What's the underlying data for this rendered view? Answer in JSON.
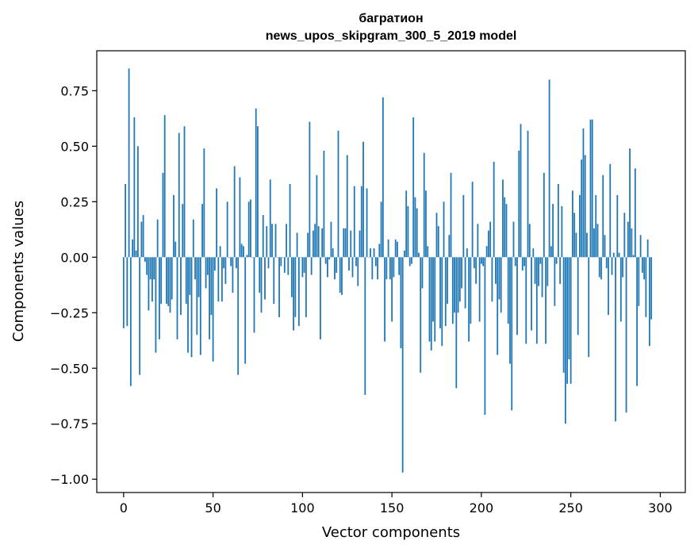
{
  "chart_data": {
    "type": "bar",
    "title": "багратион",
    "subtitle": "news_upos_skipgram_300_5_2019 model",
    "xlabel": "Vector components",
    "ylabel": "Components values",
    "xlim": [
      -15,
      314
    ],
    "ylim": [
      -1.06,
      0.93
    ],
    "grid": false,
    "color": "#1f77b4",
    "xticks": [
      {
        "value": 0,
        "label": "0"
      },
      {
        "value": 50,
        "label": "50"
      },
      {
        "value": 100,
        "label": "100"
      },
      {
        "value": 150,
        "label": "150"
      },
      {
        "value": 200,
        "label": "200"
      },
      {
        "value": 250,
        "label": "250"
      },
      {
        "value": 300,
        "label": "300"
      }
    ],
    "yticks": [
      {
        "value": 0.75,
        "label": "0.75"
      },
      {
        "value": 0.5,
        "label": "0.50"
      },
      {
        "value": 0.25,
        "label": "0.25"
      },
      {
        "value": 0.0,
        "label": "0.00"
      },
      {
        "value": -0.25,
        "label": "−0.25"
      },
      {
        "value": -0.5,
        "label": "−0.50"
      },
      {
        "value": -0.75,
        "label": "−0.75"
      },
      {
        "value": -1.0,
        "label": "−1.00"
      }
    ],
    "values": [
      -0.32,
      0.33,
      -0.31,
      0.85,
      -0.58,
      0.08,
      0.63,
      0.03,
      0.5,
      -0.53,
      0.16,
      0.19,
      -0.02,
      -0.08,
      -0.24,
      -0.1,
      -0.2,
      -0.1,
      -0.43,
      0.17,
      -0.37,
      -0.21,
      0.38,
      0.64,
      -0.21,
      -0.22,
      -0.25,
      -0.19,
      0.28,
      0.07,
      -0.37,
      0.56,
      -0.26,
      0.24,
      0.59,
      -0.21,
      -0.43,
      -0.17,
      -0.45,
      0.17,
      -0.1,
      -0.35,
      -0.18,
      -0.44,
      0.24,
      0.49,
      -0.14,
      -0.08,
      -0.37,
      -0.26,
      -0.47,
      -0.06,
      0.31,
      -0.2,
      0.05,
      -0.2,
      -0.05,
      -0.12,
      0.25,
      0.0,
      -0.04,
      -0.16,
      0.41,
      -0.05,
      -0.53,
      0.36,
      0.06,
      0.05,
      -0.48,
      0.01,
      0.25,
      0.26,
      0.0,
      -0.34,
      0.67,
      0.59,
      -0.16,
      -0.25,
      0.19,
      -0.19,
      0.14,
      -0.05,
      0.35,
      0.15,
      -0.21,
      0.15,
      0.0,
      -0.27,
      -0.04,
      0.0,
      -0.07,
      0.15,
      -0.08,
      0.33,
      -0.18,
      -0.33,
      -0.27,
      0.11,
      -0.31,
      0.0,
      -0.09,
      -0.07,
      -0.27,
      0.11,
      0.61,
      -0.08,
      0.12,
      0.15,
      0.37,
      0.14,
      -0.37,
      0.13,
      0.48,
      -0.03,
      -0.09,
      -0.01,
      0.16,
      0.04,
      -0.1,
      -0.07,
      0.57,
      -0.16,
      -0.17,
      0.13,
      0.13,
      0.46,
      -0.06,
      0.12,
      -0.09,
      0.32,
      -0.04,
      -0.13,
      0.12,
      0.32,
      0.52,
      -0.62,
      0.31,
      0.0,
      0.04,
      -0.1,
      0.04,
      -0.04,
      -0.1,
      0.06,
      0.25,
      0.72,
      -0.38,
      -0.1,
      0.08,
      -0.1,
      -0.29,
      -0.09,
      0.08,
      0.07,
      -0.08,
      -0.41,
      -0.97,
      0.03,
      0.3,
      0.23,
      -0.04,
      -0.03,
      0.63,
      0.27,
      0.22,
      0.02,
      -0.52,
      -0.14,
      0.47,
      0.3,
      0.05,
      -0.38,
      -0.42,
      -0.29,
      -0.38,
      0.2,
      0.14,
      -0.32,
      -0.4,
      0.25,
      -0.31,
      -0.21,
      0.1,
      0.38,
      -0.3,
      -0.25,
      -0.59,
      -0.25,
      -0.2,
      -0.14,
      0.28,
      -0.23,
      0.04,
      -0.38,
      -0.3,
      0.34,
      -0.05,
      -0.12,
      0.15,
      -0.29,
      -0.03,
      -0.04,
      -0.71,
      0.05,
      0.12,
      0.16,
      -0.2,
      0.43,
      -0.12,
      -0.44,
      -0.19,
      -0.25,
      0.35,
      0.27,
      0.24,
      -0.3,
      -0.48,
      -0.69,
      0.16,
      -0.04,
      -0.35,
      0.48,
      0.6,
      -0.06,
      -0.04,
      -0.39,
      0.57,
      0.15,
      -0.33,
      0.04,
      -0.12,
      -0.39,
      -0.13,
      -0.03,
      -0.18,
      0.38,
      -0.39,
      -0.13,
      0.8,
      0.05,
      0.24,
      -0.22,
      -0.03,
      0.33,
      -0.12,
      0.23,
      -0.52,
      -0.75,
      -0.57,
      -0.46,
      -0.57,
      0.3,
      0.2,
      0.11,
      -0.35,
      0.28,
      0.44,
      0.58,
      0.46,
      0.11,
      -0.45,
      0.62,
      0.62,
      0.13,
      0.28,
      0.15,
      -0.09,
      -0.1,
      0.37,
      0.1,
      -0.05,
      -0.26,
      0.42,
      -0.08,
      0.02,
      -0.74,
      0.28,
      0.02,
      -0.29,
      -0.09,
      0.2,
      -0.7,
      0.16,
      0.49,
      0.13,
      0.01,
      0.4,
      -0.58,
      -0.22,
      0.1,
      -0.07,
      -0.1,
      -0.27,
      0.08,
      -0.4,
      -0.28
    ]
  }
}
